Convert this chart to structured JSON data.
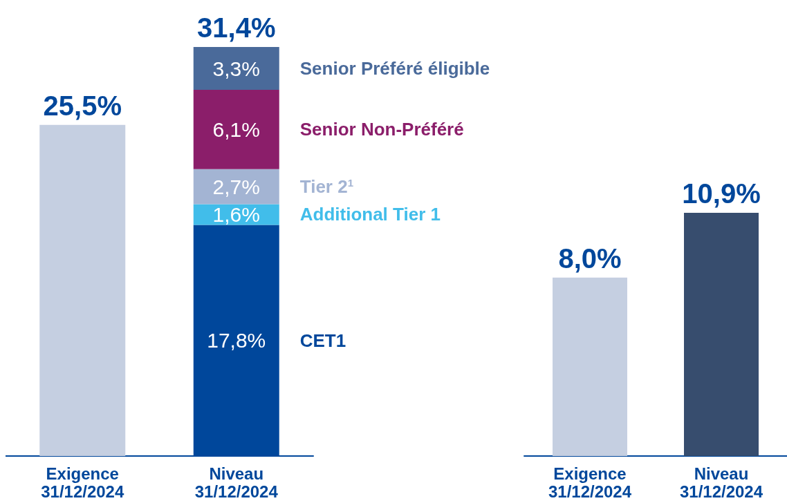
{
  "chart_data": [
    {
      "type": "bar",
      "stacked": true,
      "categories": [
        "Exigence\n31/12/2024",
        "Niveau\n31/12/2024"
      ],
      "totals": [
        "25,5%",
        "31,4%"
      ],
      "series": [
        {
          "color": "#c5cfe1",
          "values": [
            25.5,
            null
          ]
        },
        {
          "name": "CET1",
          "color": "#00479b",
          "values": [
            null,
            17.8
          ],
          "value_labels": [
            null,
            "17,8%"
          ]
        },
        {
          "name": "Additional Tier 1",
          "color": "#41bdea",
          "values": [
            null,
            1.6
          ],
          "value_labels": [
            null,
            "1,6%"
          ]
        },
        {
          "name": "Tier 2$^{1}$",
          "color": "#a3b4d3",
          "values": [
            null,
            2.7
          ],
          "value_labels": [
            null,
            "2,7%"
          ]
        },
        {
          "name": "Senior Non-Préféré",
          "color": "#8b1e6a",
          "values": [
            null,
            6.1
          ],
          "value_labels": [
            null,
            "6,1%"
          ]
        },
        {
          "name": "Senior Préféré éligible",
          "color": "#4a6a9a",
          "values": [
            null,
            3.3
          ],
          "value_labels": [
            null,
            "3,3%"
          ]
        }
      ]
    },
    {
      "type": "bar",
      "categories": [
        "Exigence\n31/12/2024",
        "Niveau\n31/12/2024"
      ],
      "values": [
        8.0,
        10.9
      ],
      "colors": [
        "#c5cfe1",
        "#374d6e"
      ],
      "value_labels": [
        "8,0%",
        "10,9%"
      ]
    }
  ]
}
